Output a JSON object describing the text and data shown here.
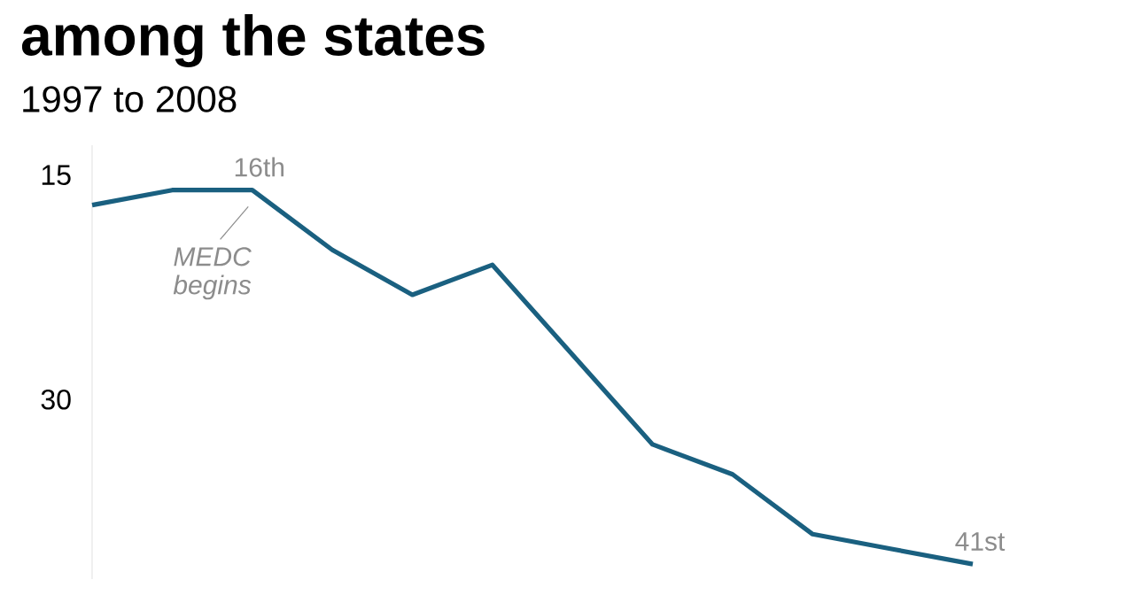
{
  "chart_data": {
    "type": "line",
    "title": "among the states",
    "subtitle": "1997 to 2008",
    "categories": [
      null,
      null,
      null,
      null,
      null,
      null,
      null,
      null,
      null,
      null,
      null,
      null
    ],
    "values": [
      17,
      16,
      16,
      20,
      23,
      21,
      27,
      33,
      35,
      39,
      40,
      41
    ],
    "color": "#1a6080",
    "ylim": [
      42,
      13
    ],
    "yticks": [
      15,
      30
    ],
    "annotations": [
      {
        "text": "16th",
        "y": 16
      },
      "MEDC begins",
      {
        "text": "41st",
        "y": 41
      }
    ]
  }
}
